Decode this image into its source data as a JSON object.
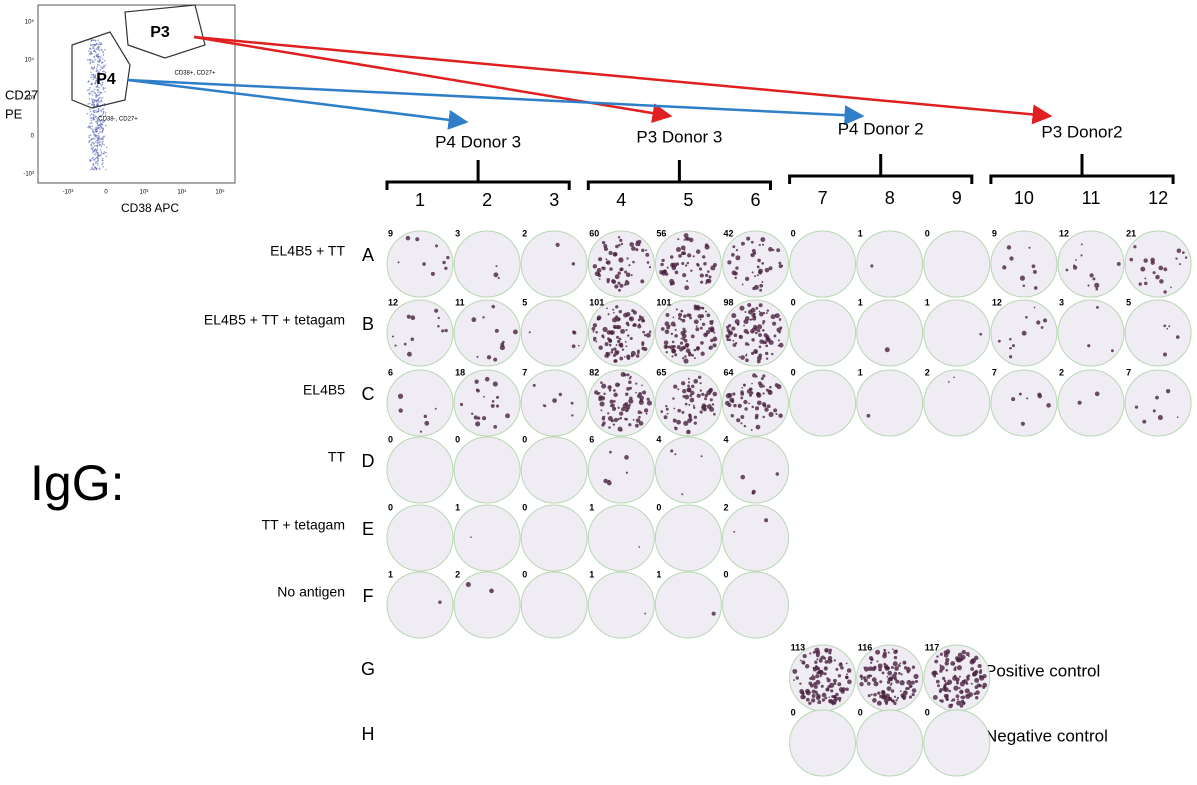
{
  "facs": {
    "y_label_1": "CD27",
    "y_label_2": "PE",
    "x_label": "CD38 APC",
    "y_ticks": [
      "10⁵",
      "10⁴",
      "10³",
      "0",
      "-10³"
    ],
    "x_ticks": [
      "-10³",
      "0",
      "10³",
      "10⁴",
      "10⁵"
    ],
    "gates": [
      {
        "name": "P3",
        "label": "CD38+, CD27+"
      },
      {
        "name": "P4",
        "label": "CD38-, CD27+"
      }
    ]
  },
  "plate": {
    "isotype": "IgG:",
    "groups": [
      "P4 Donor 3",
      "P3 Donor 3",
      "P4 Donor 2",
      "P3 Donor2"
    ],
    "columns": [
      "1",
      "2",
      "3",
      "4",
      "5",
      "6",
      "7",
      "8",
      "9",
      "10",
      "11",
      "12"
    ],
    "rows": [
      {
        "letter": "A",
        "label": "EL4B5 + TT",
        "counts": [
          9,
          3,
          2,
          60,
          56,
          42,
          0,
          1,
          0,
          9,
          12,
          21
        ]
      },
      {
        "letter": "B",
        "label": "EL4B5 + TT + tetagam",
        "counts": [
          12,
          11,
          5,
          101,
          101,
          98,
          0,
          1,
          1,
          12,
          3,
          5
        ]
      },
      {
        "letter": "C",
        "label": "EL4B5",
        "counts": [
          6,
          18,
          7,
          82,
          65,
          64,
          0,
          1,
          2,
          7,
          2,
          7
        ]
      },
      {
        "letter": "D",
        "label": "TT",
        "counts": [
          0,
          0,
          0,
          6,
          4,
          4
        ]
      },
      {
        "letter": "E",
        "label": "TT + tetagam",
        "counts": [
          0,
          1,
          0,
          1,
          0,
          2
        ]
      },
      {
        "letter": "F",
        "label": "No antigen",
        "counts": [
          1,
          2,
          0,
          1,
          1,
          0
        ]
      },
      {
        "letter": "G",
        "label": "Positive control",
        "counts": [
          null,
          null,
          null,
          null,
          null,
          null,
          113,
          116,
          117
        ]
      },
      {
        "letter": "H",
        "label": "Negative control",
        "counts": [
          null,
          null,
          null,
          null,
          null,
          null,
          0,
          0,
          0
        ]
      }
    ]
  }
}
